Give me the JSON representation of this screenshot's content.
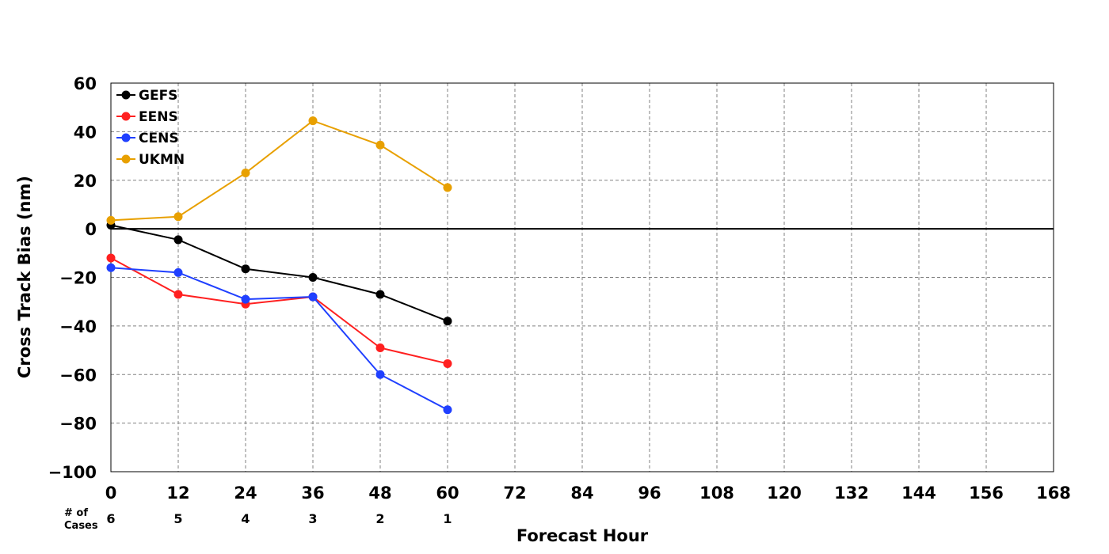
{
  "chart_data": {
    "type": "line",
    "title": "",
    "xlabel": "Forecast Hour",
    "ylabel": "Cross Track Bias (nm)",
    "xlim": [
      0,
      168
    ],
    "ylim": [
      -100,
      60
    ],
    "xticks": [
      0,
      12,
      24,
      36,
      48,
      60,
      72,
      84,
      96,
      108,
      120,
      132,
      144,
      156,
      168
    ],
    "yticks": [
      -100,
      -80,
      -60,
      -40,
      -20,
      0,
      20,
      40,
      60
    ],
    "ytick_labels": [
      "−100",
      "−80",
      "−60",
      "−40",
      "−20",
      "0",
      "20",
      "40",
      "60"
    ],
    "grid": true,
    "legend_position": "top-left",
    "x": [
      0,
      12,
      24,
      36,
      48,
      60
    ],
    "series": [
      {
        "name": "GEFS",
        "color": "#000000",
        "values": [
          1.5,
          -4.5,
          -16.5,
          -20,
          -27,
          -38
        ]
      },
      {
        "name": "EENS",
        "color": "#ff2020",
        "values": [
          -12,
          -27,
          -31,
          -28,
          -49,
          -55.5
        ]
      },
      {
        "name": "CENS",
        "color": "#2040ff",
        "values": [
          -16,
          -18,
          -29,
          -28,
          -60,
          -74.5
        ]
      },
      {
        "name": "UKMN",
        "color": "#e8a000",
        "values": [
          3.5,
          5,
          23,
          44.5,
          34.5,
          17
        ]
      }
    ],
    "cases": {
      "title_line1": "# of",
      "title_line2": "Cases",
      "x": [
        0,
        12,
        24,
        36,
        48,
        60
      ],
      "counts": [
        "6",
        "5",
        "4",
        "3",
        "2",
        "1"
      ]
    }
  }
}
